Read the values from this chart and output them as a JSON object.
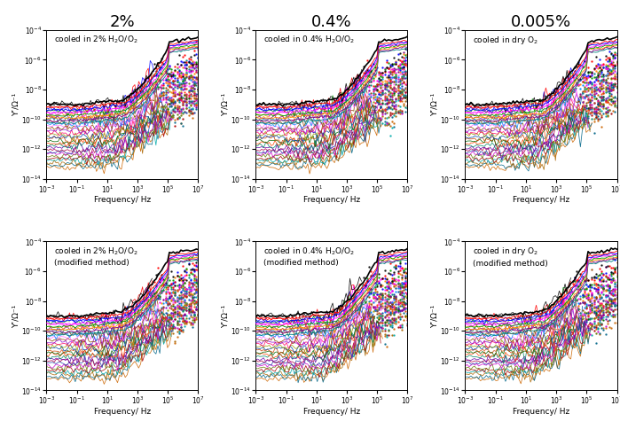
{
  "col_titles": [
    "2%",
    "0.4%",
    "0.005%"
  ],
  "subplot_labels_top": [
    "cooled in 2% H$_2$O/O$_2$",
    "cooled in 0.4% H$_2$O/O$_2$",
    "cooled in dry O$_2$"
  ],
  "subplot_labels_bottom": [
    "cooled in 2% H$_2$O/O$_2$\n(modified method)",
    "cooled in 0.4% H$_2$O/O$_2$\n(modified method)",
    "cooled in dry O$_2$\n(modified method)"
  ],
  "xlabel": "Frequency/ Hz",
  "ylabel": "Y’/Ω⁻¹",
  "xlim_log": [
    -3,
    7
  ],
  "ylim_log": [
    -14,
    -4
  ],
  "n_curves": 30,
  "freq_min_log": -3,
  "freq_max_log": 7,
  "colors_cycle": [
    "#000000",
    "#FF0000",
    "#0000FF",
    "#009900",
    "#FF00FF",
    "#FF8800",
    "#800080",
    "#008080",
    "#994400",
    "#0088FF",
    "#FF66FF",
    "#884400",
    "#8800CC",
    "#FF0066",
    "#999900",
    "#0044AA",
    "#CC4400",
    "#006600",
    "#FF4400",
    "#008866",
    "#6600AA",
    "#AA0044",
    "#2244AA",
    "#CC00CC",
    "#667700",
    "#AA0000",
    "#00AAAA",
    "#AA6600",
    "#006688",
    "#CC6600"
  ],
  "col_title_fontsize": 13,
  "label_fontsize": 6.5,
  "tick_fontsize": 5.5,
  "axis_label_fontsize": 6.5
}
